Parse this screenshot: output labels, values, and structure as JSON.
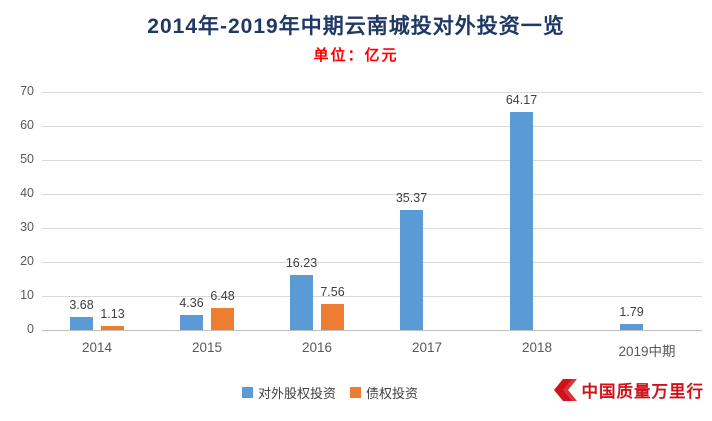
{
  "watermark": {
    "text": "中国质量万里行"
  },
  "chart_data": {
    "type": "bar",
    "title": "2014年-2019年中期云南城投对外投资一览",
    "subtitle": "单位：亿元",
    "categories": [
      "2014",
      "2015",
      "2016",
      "2017",
      "2018",
      "2019中期"
    ],
    "series": [
      {
        "name": "对外股权投资",
        "color": "#5B9BD5",
        "values": [
          3.68,
          4.36,
          16.23,
          35.37,
          64.17,
          1.79
        ]
      },
      {
        "name": "债权投资",
        "color": "#ED7D31",
        "values": [
          1.13,
          6.48,
          7.56,
          null,
          null,
          null
        ]
      }
    ],
    "xlabel": "",
    "ylabel": "",
    "ylim": [
      0,
      70
    ],
    "ytick_step": 10,
    "grid": true,
    "legend_position": "bottom",
    "title_color": "#1F3864",
    "subtitle_color": "#FF0000",
    "watermark_color": "#D0121B"
  }
}
